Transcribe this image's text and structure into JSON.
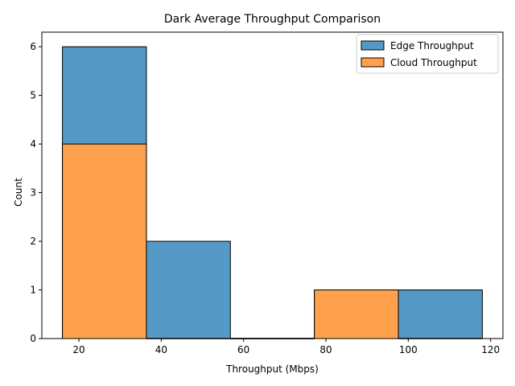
{
  "chart_data": {
    "type": "histogram",
    "title": "Dark Average Throughput Comparison",
    "xlabel": "Throughput (Mbps)",
    "ylabel": "Count",
    "bin_edges": [
      16.0,
      36.4,
      56.8,
      77.2,
      97.6,
      118.0
    ],
    "series": [
      {
        "name": "Edge Throughput",
        "color": "#5599c7",
        "counts": [
          6,
          2,
          0,
          1,
          1
        ]
      },
      {
        "name": "Cloud Throughput",
        "color": "#ffa04d",
        "counts": [
          4,
          0,
          0,
          1,
          0
        ]
      }
    ],
    "xlim": [
      11.0,
      123.0
    ],
    "ylim": [
      0,
      6.3
    ],
    "xticks": [
      20,
      40,
      60,
      80,
      100,
      120
    ],
    "yticks": [
      0,
      1,
      2,
      3,
      4,
      5,
      6
    ],
    "legend": "top-right",
    "grid": false
  }
}
